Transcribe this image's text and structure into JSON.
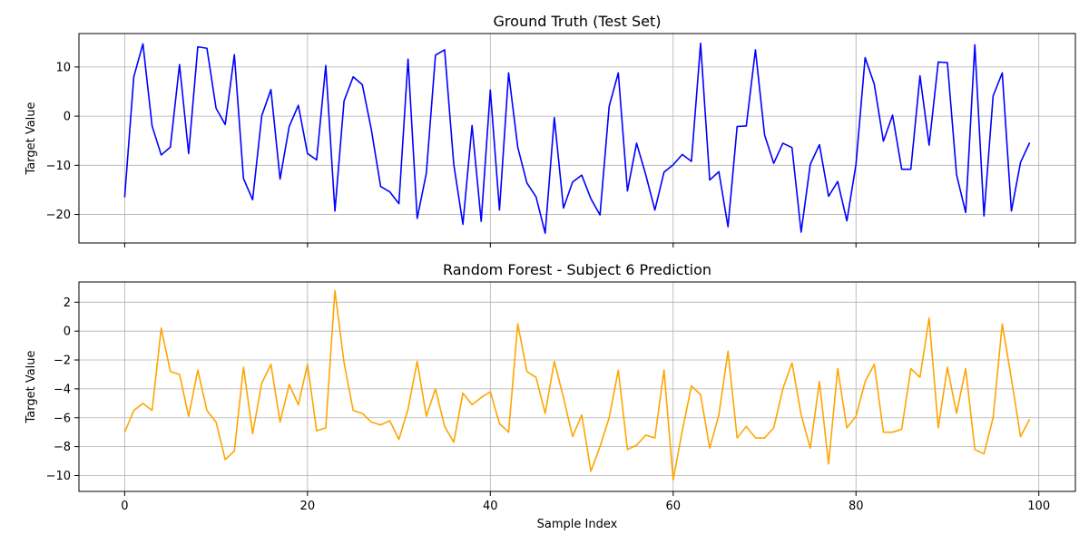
{
  "chart_data": [
    {
      "type": "line",
      "title": "Ground Truth (Test Set)",
      "xlabel": "",
      "ylabel": "Target Value",
      "xlim": [
        -5,
        104
      ],
      "ylim": [
        -25.8,
        16.8
      ],
      "xticks": [
        0,
        20,
        40,
        60,
        80,
        100
      ],
      "xtick_labels_visible": false,
      "yticks": [
        -20,
        -10,
        0,
        10
      ],
      "grid": true,
      "color": "#0000ff",
      "x": [
        0,
        1,
        2,
        3,
        4,
        5,
        6,
        7,
        8,
        9,
        10,
        11,
        12,
        13,
        14,
        15,
        16,
        17,
        18,
        19,
        20,
        21,
        22,
        23,
        24,
        25,
        26,
        27,
        28,
        29,
        30,
        31,
        32,
        33,
        34,
        35,
        36,
        37,
        38,
        39,
        40,
        41,
        42,
        43,
        44,
        45,
        46,
        47,
        48,
        49,
        50,
        51,
        52,
        53,
        54,
        55,
        56,
        57,
        58,
        59,
        60,
        61,
        62,
        63,
        64,
        65,
        66,
        67,
        68,
        69,
        70,
        71,
        72,
        73,
        74,
        75,
        76,
        77,
        78,
        79,
        80,
        81,
        82,
        83,
        84,
        85,
        86,
        87,
        88,
        89,
        90,
        91,
        92,
        93,
        94,
        95,
        96,
        97,
        98,
        99
      ],
      "values": [
        -16.5,
        8,
        14.7,
        -2,
        -7.9,
        -6.3,
        10.5,
        -7.6,
        14.1,
        13.8,
        1.6,
        -1.7,
        12.5,
        -12.7,
        -17,
        0.1,
        5.4,
        -12.8,
        -2.1,
        2.2,
        -7.6,
        -8.9,
        10.3,
        -19.3,
        3.1,
        8,
        6.4,
        -2.9,
        -14.3,
        -15.4,
        -17.8,
        11.6,
        -20.8,
        -11.6,
        12.4,
        13.5,
        -9.8,
        -22,
        -1.9,
        -21.4,
        5.3,
        -19.1,
        8.8,
        -6.3,
        -13.6,
        -16.4,
        -23.8,
        -0.3,
        -18.7,
        -13.4,
        -12,
        -16.8,
        -20.1,
        2,
        8.8,
        -15.2,
        -5.5,
        -11.9,
        -19.1,
        -11.4,
        -9.9,
        -7.8,
        -9.2,
        14.8,
        -13,
        -11.3,
        -22.5,
        -2.1,
        -2,
        13.5,
        -3.8,
        -9.6,
        -5.5,
        -6.4,
        -23.6,
        -9.8,
        -5.8,
        -16.3,
        -13.3,
        -21.3,
        -9.8,
        11.9,
        6.5,
        -5.1,
        0.2,
        -10.8,
        -10.8,
        8.2,
        -5.9,
        11,
        10.9,
        -11.9,
        -19.6,
        14.5,
        -20.3,
        4.1,
        8.8,
        -19.3,
        -9.4,
        -5.4
      ]
    },
    {
      "type": "line",
      "title": "Random Forest - Subject 6 Prediction",
      "xlabel": "Sample Index",
      "ylabel": "Target Value",
      "xlim": [
        -5,
        104
      ],
      "ylim": [
        -11.1,
        3.4
      ],
      "xticks": [
        0,
        20,
        40,
        60,
        80,
        100
      ],
      "yticks": [
        -10,
        -8,
        -6,
        -4,
        -2,
        0,
        2
      ],
      "grid": true,
      "color": "#ffa500",
      "x": [
        0,
        1,
        2,
        3,
        4,
        5,
        6,
        7,
        8,
        9,
        10,
        11,
        12,
        13,
        14,
        15,
        16,
        17,
        18,
        19,
        20,
        21,
        22,
        23,
        24,
        25,
        26,
        27,
        28,
        29,
        30,
        31,
        32,
        33,
        34,
        35,
        36,
        37,
        38,
        39,
        40,
        41,
        42,
        43,
        44,
        45,
        46,
        47,
        48,
        49,
        50,
        51,
        52,
        53,
        54,
        55,
        56,
        57,
        58,
        59,
        60,
        61,
        62,
        63,
        64,
        65,
        66,
        67,
        68,
        69,
        70,
        71,
        72,
        73,
        74,
        75,
        76,
        77,
        78,
        79,
        80,
        81,
        82,
        83,
        84,
        85,
        86,
        87,
        88,
        89,
        90,
        91,
        92,
        93,
        94,
        95,
        96,
        97,
        98,
        99
      ],
      "values": [
        -7,
        -5.5,
        -5,
        -5.5,
        0.2,
        -2.8,
        -3,
        -5.9,
        -2.7,
        -5.5,
        -6.3,
        -8.9,
        -8.3,
        -2.5,
        -7.1,
        -3.6,
        -2.3,
        -6.3,
        -3.7,
        -5.1,
        -2.3,
        -6.9,
        -6.7,
        2.8,
        -2.2,
        -5.5,
        -5.7,
        -6.3,
        -6.5,
        -6.2,
        -7.5,
        -5.4,
        -2.1,
        -5.9,
        -4,
        -6.6,
        -7.7,
        -4.3,
        -5.1,
        -4.6,
        -4.2,
        -6.4,
        -7,
        0.5,
        -2.8,
        -3.2,
        -5.7,
        -2.1,
        -4.6,
        -7.3,
        -5.8,
        -9.7,
        -8,
        -6,
        -2.7,
        -8.2,
        -7.9,
        -7.2,
        -7.4,
        -2.7,
        -10.3,
        -6.9,
        -3.8,
        -4.4,
        -8.1,
        -5.8,
        -1.4,
        -7.4,
        -6.6,
        -7.4,
        -7.4,
        -6.7,
        -4,
        -2.2,
        -5.8,
        -8.1,
        -3.5,
        -9.2,
        -2.6,
        -6.7,
        -5.9,
        -3.5,
        -2.3,
        -7,
        -7,
        -6.8,
        -2.6,
        -3.2,
        0.9,
        -6.7,
        -2.5,
        -5.7,
        -2.6,
        -8.2,
        -8.5,
        -6,
        0.5,
        -3.3,
        -7.3,
        -6.1
      ]
    }
  ]
}
